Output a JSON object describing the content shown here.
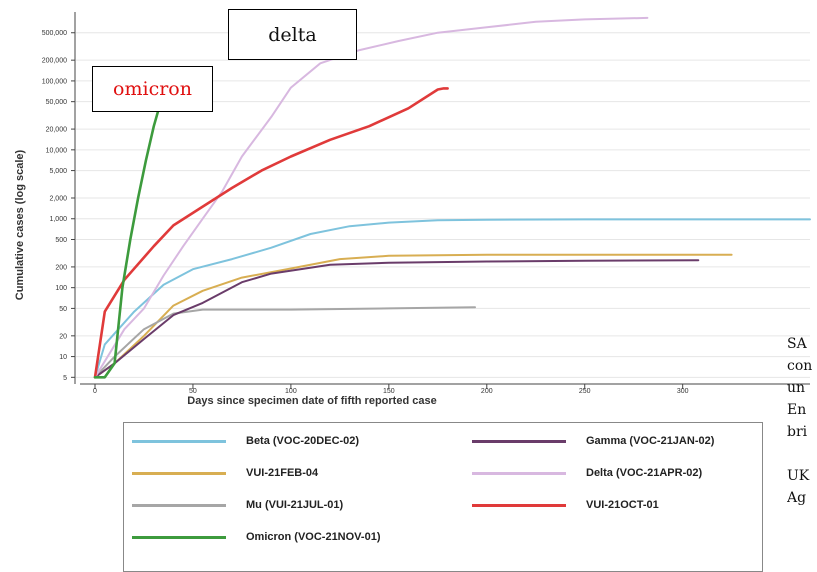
{
  "chart_data": {
    "type": "line",
    "xlabel": "Days since specimen date of fifth reported case",
    "ylabel": "Cumulative cases (log scale)",
    "yscale": "log",
    "xlim": [
      0,
      365
    ],
    "ylim": [
      4,
      1000000
    ],
    "xticks": [
      0,
      50,
      100,
      150,
      200,
      250,
      300
    ],
    "yticks": [
      5,
      10,
      20,
      50,
      100,
      200,
      500,
      1000,
      2000,
      5000,
      10000,
      20000,
      50000,
      100000,
      200000,
      500000
    ],
    "ytick_labels": [
      "5",
      "10",
      "20",
      "50",
      "100",
      "200",
      "500",
      "1,000",
      "2,000",
      "5,000",
      "10,000",
      "20,000",
      "50,000",
      "100,000",
      "200,000",
      "500,000"
    ],
    "grid": true,
    "series": [
      {
        "name": "Beta (VOC-20DEC-02)",
        "color": "#7ec3dd",
        "points": [
          [
            0,
            5
          ],
          [
            5,
            15
          ],
          [
            20,
            45
          ],
          [
            35,
            110
          ],
          [
            50,
            185
          ],
          [
            70,
            260
          ],
          [
            90,
            380
          ],
          [
            110,
            600
          ],
          [
            130,
            780
          ],
          [
            150,
            880
          ],
          [
            175,
            950
          ],
          [
            200,
            970
          ],
          [
            250,
            980
          ],
          [
            300,
            980
          ],
          [
            365,
            980
          ]
        ]
      },
      {
        "name": "VUI-21FEB-04",
        "color": "#d8ae52",
        "points": [
          [
            0,
            5
          ],
          [
            10,
            8
          ],
          [
            25,
            20
          ],
          [
            40,
            55
          ],
          [
            55,
            90
          ],
          [
            75,
            140
          ],
          [
            100,
            190
          ],
          [
            125,
            260
          ],
          [
            150,
            290
          ],
          [
            200,
            300
          ],
          [
            250,
            300
          ],
          [
            300,
            300
          ],
          [
            325,
            300
          ]
        ]
      },
      {
        "name": "Mu (VUI-21JUL-01)",
        "color": "#a6a6a6",
        "points": [
          [
            0,
            5
          ],
          [
            10,
            10
          ],
          [
            25,
            25
          ],
          [
            40,
            42
          ],
          [
            55,
            48
          ],
          [
            75,
            48
          ],
          [
            100,
            48
          ],
          [
            150,
            50
          ],
          [
            194,
            52
          ]
        ]
      },
      {
        "name": "Omicron (VOC-21NOV-01)",
        "color": "#3d9b3d",
        "points": [
          [
            0,
            5
          ],
          [
            5,
            5
          ],
          [
            10,
            8
          ],
          [
            14,
            100
          ],
          [
            18,
            500
          ],
          [
            22,
            2000
          ],
          [
            26,
            7000
          ],
          [
            30,
            22000
          ],
          [
            34,
            55000
          ],
          [
            36,
            60000
          ]
        ]
      },
      {
        "name": "Gamma (VOC-21JAN-02)",
        "color": "#6a3c6a",
        "points": [
          [
            0,
            5
          ],
          [
            10,
            8
          ],
          [
            25,
            18
          ],
          [
            40,
            40
          ],
          [
            55,
            60
          ],
          [
            75,
            120
          ],
          [
            90,
            160
          ],
          [
            120,
            215
          ],
          [
            150,
            230
          ],
          [
            200,
            240
          ],
          [
            250,
            245
          ],
          [
            308,
            250
          ]
        ]
      },
      {
        "name": "Delta (VOC-21APR-02)",
        "color": "#d8b8e0",
        "points": [
          [
            0,
            5
          ],
          [
            15,
            25
          ],
          [
            25,
            50
          ],
          [
            35,
            150
          ],
          [
            45,
            400
          ],
          [
            55,
            1000
          ],
          [
            65,
            2500
          ],
          [
            75,
            8000
          ],
          [
            90,
            30000
          ],
          [
            100,
            80000
          ],
          [
            115,
            180000
          ],
          [
            135,
            280000
          ],
          [
            155,
            380000
          ],
          [
            175,
            500000
          ],
          [
            200,
            600000
          ],
          [
            225,
            720000
          ],
          [
            250,
            780000
          ],
          [
            282,
            820000
          ]
        ]
      },
      {
        "name": "VUI-21OCT-01",
        "color": "#e03a3a",
        "points": [
          [
            0,
            5
          ],
          [
            5,
            45
          ],
          [
            15,
            130
          ],
          [
            30,
            400
          ],
          [
            40,
            800
          ],
          [
            55,
            1500
          ],
          [
            70,
            2800
          ],
          [
            85,
            5000
          ],
          [
            100,
            8000
          ],
          [
            120,
            14000
          ],
          [
            140,
            22000
          ],
          [
            160,
            40000
          ],
          [
            175,
            75000
          ],
          [
            178,
            78000
          ],
          [
            180,
            78000
          ]
        ]
      }
    ],
    "callouts": {
      "delta": "delta",
      "omicron": "omicron"
    }
  },
  "side_note_lines": [
    "SA",
    "con",
    "un",
    "En",
    "bri",
    "",
    "UK",
    "Ag"
  ]
}
